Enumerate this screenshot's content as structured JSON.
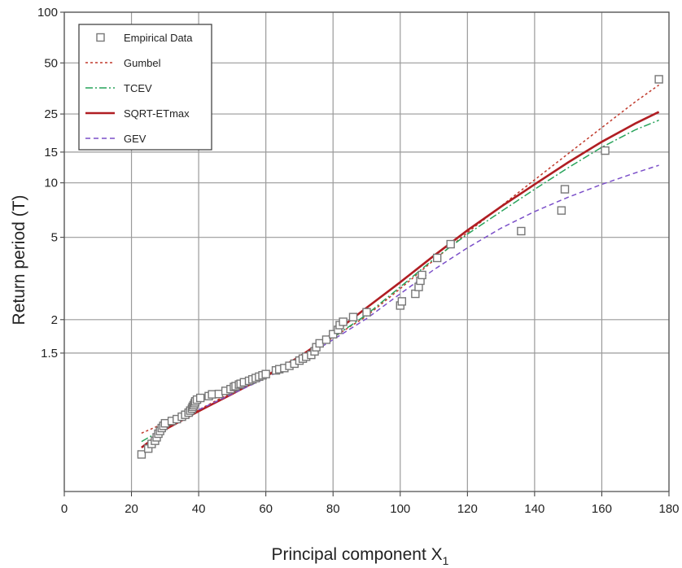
{
  "chart_data": {
    "type": "scatter",
    "title": "",
    "xlabel": "Principal component X",
    "xlabel_sub": "1",
    "ylabel": "Return period (T)",
    "xlim": [
      0,
      180
    ],
    "ylim": [
      1,
      100
    ],
    "yscale": "gumbel-reduced-variate",
    "xticks": [
      "0",
      "20",
      "40",
      "60",
      "80",
      "100",
      "120",
      "140",
      "160",
      "180"
    ],
    "yticks": [
      "1.5",
      "2",
      "5",
      "10",
      "15",
      "25",
      "50",
      "100"
    ],
    "grid": true,
    "legend_position": "top-left",
    "series": [
      {
        "name": "Empirical Data",
        "kind": "markers",
        "color": "#777777",
        "x": [
          23,
          25,
          26,
          27,
          27.5,
          28,
          28.5,
          29,
          29.5,
          30,
          32,
          33.5,
          35,
          36,
          37,
          37.5,
          38,
          38.2,
          38.5,
          38.8,
          39,
          39.5,
          40.5,
          43,
          44,
          46,
          48,
          49.5,
          50.5,
          51,
          52,
          52.5,
          53.5,
          55,
          56,
          57,
          58,
          59,
          60,
          63,
          64,
          65.5,
          67,
          68.5,
          70,
          71,
          72,
          73.5,
          74.5,
          75,
          76,
          78,
          80,
          81.5,
          82,
          83,
          86,
          90,
          100,
          100.5,
          104.5,
          105.5,
          106,
          106.5,
          111,
          115,
          136,
          148,
          149,
          161,
          177
        ],
        "y": [
          1.012,
          1.017,
          1.022,
          1.026,
          1.031,
          1.037,
          1.042,
          1.048,
          1.053,
          1.059,
          1.065,
          1.07,
          1.077,
          1.083,
          1.09,
          1.097,
          1.104,
          1.111,
          1.118,
          1.126,
          1.134,
          1.142,
          1.15,
          1.159,
          1.168,
          1.17,
          1.187,
          1.197,
          1.21,
          1.215,
          1.225,
          1.23,
          1.24,
          1.25,
          1.26,
          1.27,
          1.28,
          1.29,
          1.3,
          1.33,
          1.34,
          1.35,
          1.37,
          1.39,
          1.42,
          1.44,
          1.46,
          1.48,
          1.52,
          1.57,
          1.62,
          1.67,
          1.75,
          1.82,
          1.9,
          1.96,
          2.05,
          2.15,
          2.3,
          2.4,
          2.6,
          2.8,
          3.0,
          3.2,
          3.9,
          4.6,
          5.4,
          7.0,
          9.2,
          15.3,
          40
        ]
      },
      {
        "name": "Gumbel",
        "kind": "line",
        "color": "#c0392b",
        "dash": "3,3",
        "x": [
          23,
          30,
          40,
          50,
          60,
          70,
          80,
          90,
          100,
          110,
          120,
          130,
          140,
          150,
          160,
          170,
          177
        ],
        "y": [
          1.038,
          1.06,
          1.1,
          1.18,
          1.28,
          1.43,
          1.7,
          2.07,
          2.75,
          3.8,
          5.3,
          7.4,
          10.4,
          14.7,
          20.8,
          29.5,
          37
        ]
      },
      {
        "name": "TCEV",
        "kind": "line",
        "color": "#27a35a",
        "dash": "9,3,2,3",
        "x": [
          23,
          30,
          40,
          50,
          60,
          70,
          80,
          90,
          100,
          110,
          120,
          130,
          140,
          150,
          160,
          170,
          177
        ],
        "y": [
          1.025,
          1.048,
          1.095,
          1.17,
          1.28,
          1.44,
          1.7,
          2.1,
          2.8,
          3.85,
          5.2,
          6.9,
          9.2,
          12.2,
          16,
          20.2,
          23
        ]
      },
      {
        "name": "SQRT-ETmax",
        "kind": "line",
        "color": "#b01e23",
        "dash": "",
        "x": [
          23,
          30,
          40,
          50,
          60,
          70,
          80,
          90,
          100,
          110,
          120,
          130,
          140,
          150,
          160,
          170,
          177
        ],
        "y": [
          1.018,
          1.045,
          1.095,
          1.17,
          1.285,
          1.46,
          1.76,
          2.25,
          2.95,
          4.0,
          5.45,
          7.35,
          9.8,
          13.1,
          17.2,
          22.0,
          25.7
        ]
      },
      {
        "name": "GEV",
        "kind": "line",
        "color": "#7b4fc9",
        "dash": "6,4",
        "x": [
          40,
          50,
          60,
          70,
          80,
          90,
          100,
          110,
          120,
          130,
          140,
          150,
          160,
          170,
          177
        ],
        "y": [
          1.1,
          1.17,
          1.27,
          1.42,
          1.67,
          2.02,
          2.6,
          3.4,
          4.4,
          5.6,
          6.9,
          8.3,
          9.8,
          11.4,
          12.6
        ]
      }
    ]
  }
}
